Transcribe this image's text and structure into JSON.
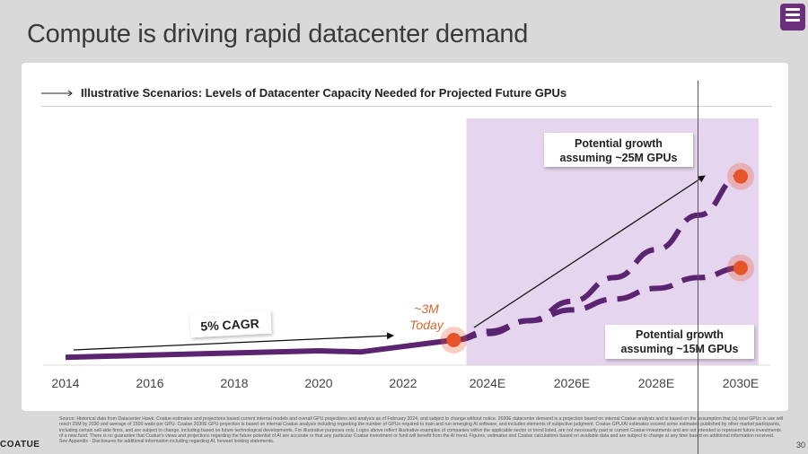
{
  "slide": {
    "title": "Compute is driving rapid datacenter demand",
    "subtitle": "Illustrative Scenarios: Levels of Datacenter Capacity Needed for Projected Future GPUs",
    "brand": "COATUE",
    "page_number": "30",
    "footnote": "Source: Historical data from Datacenter Hawk, Coatue estimates and projections based current internal models and overall GPU projections and analysis as of February 2024, and subject to change without notice. 2030E datacenter demand is a projection based on internal Coatue analysis and is based on the assumption that (a) total GPUs in use will reach 25M by 2030 and average of 1500 watts per GPU. Coatue 2030E GPU projection is based on internal Coatue analysis including regarding the number of GPUs required to train and run emerging AI software, and includes elements of subjective judgment. Coatue GPU/AI estimates exceed some estimates published by other market participants, including certain sell-side firms, and are subject to change, including based on future technological developments. For illustrative purposes only. Logos above reflect illustrative examples of companies within the applicable sector or trend listed, are not necessarily past or current Coatue investments and are not intended to represent future investments of a new fund. There is no guarantee that Coatue's views and projections regarding the future potential of AI are accurate or that any particular Coatue investment or fund will benefit from the AI trend. Figures, estimates and Coatue calculations based on available data and are subject to change at any time based on additional information received. See Appendix - Disclosures for additional information including regarding AI, forward looking statements."
  },
  "colors": {
    "accent": "#5b2470",
    "marker": "#e8542a",
    "projection_shade": "#e6d5ee",
    "background": "#d9d9d9"
  },
  "icons": {
    "header_arrow": "right-arrow-icon",
    "corner": "document-list-icon"
  },
  "chart_data": {
    "type": "line",
    "title": "",
    "xlabel": "",
    "ylabel": "",
    "x_ticks": [
      "2014",
      "2016",
      "2018",
      "2020",
      "2022",
      "2024E",
      "2026E",
      "2028E",
      "2030E"
    ],
    "projection_start": 2023.5,
    "series": [
      {
        "name": "",
        "style": "solid",
        "points": [
          [
            2014,
            0.2
          ],
          [
            2016,
            0.3
          ],
          [
            2018,
            0.4
          ],
          [
            2020,
            0.5
          ],
          [
            2021,
            0.45
          ],
          [
            2022,
            0.7
          ],
          [
            2023.2,
            1.0
          ]
        ]
      },
      {
        "name": "Potential growth assuming ~25M GPUs",
        "style": "dashed",
        "points": [
          [
            2023.2,
            1.0
          ],
          [
            2024,
            1.3
          ],
          [
            2025,
            1.9
          ],
          [
            2026,
            2.8
          ],
          [
            2027,
            3.9
          ],
          [
            2028,
            5.2
          ],
          [
            2029,
            6.8
          ],
          [
            2030,
            8.6
          ]
        ]
      },
      {
        "name": "Potential growth assuming ~15M GPUs",
        "style": "dashed",
        "points": [
          [
            2023.2,
            1.0
          ],
          [
            2024,
            1.4
          ],
          [
            2025,
            1.9
          ],
          [
            2026,
            2.4
          ],
          [
            2027,
            2.9
          ],
          [
            2028,
            3.4
          ],
          [
            2029,
            3.9
          ],
          [
            2030,
            4.35
          ]
        ]
      }
    ],
    "annotations": {
      "cagr": "5% CAGR",
      "today_value": "~3M",
      "today_label": "Today",
      "high_label_1": "Potential growth",
      "high_label_2": "assuming ~25M GPUs",
      "low_label_1": "Potential growth",
      "low_label_2": "assuming ~15M GPUs"
    },
    "grid": false,
    "legend": "none"
  }
}
